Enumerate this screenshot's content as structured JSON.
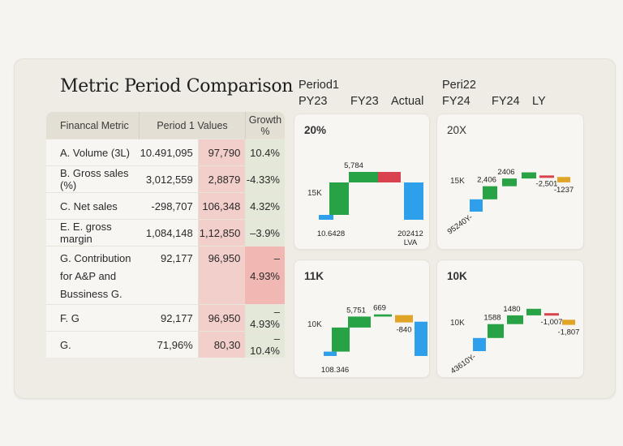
{
  "title": "Metric Period Comparison",
  "table": {
    "headers": [
      "Financal Metric",
      "Period 1 Values",
      "Growth %"
    ],
    "rows": [
      {
        "metric": "A. Volume (3L)",
        "p1": "10.491,095",
        "p2": "97,790",
        "growth": "10.4%",
        "growth_neg_highlight": false
      },
      {
        "metric": "B. Gross sales (%)",
        "p1": "3,012,559",
        "p2": "2,8879",
        "growth": "-4.33%",
        "growth_neg_highlight": false
      },
      {
        "metric": "C. Net sales",
        "p1": "-298,707",
        "p2": "106,348",
        "growth": "4.32%",
        "growth_neg_highlight": false
      },
      {
        "metric": "E. E. gross margin",
        "p1": "1,084,148",
        "p2": "1,12,850",
        "growth": "–3.9%",
        "growth_neg_highlight": false
      },
      {
        "metric": "G. Contribution for A&P and Bussiness G.",
        "p1": "92,177",
        "p2": "96,950",
        "growth": "–4.93%",
        "growth_neg_highlight": true
      },
      {
        "metric": "F. G",
        "p1": "92,177",
        "p2": "96,950",
        "growth": "–4.93%",
        "growth_neg_highlight": false
      },
      {
        "metric": "G.",
        "p1": "71,96%",
        "p2": "80,30",
        "growth": "–10.4%",
        "growth_neg_highlight": false
      }
    ]
  },
  "period_headers": {
    "period1": {
      "label": "Period1",
      "cols": [
        "PY23",
        "FY23",
        "Actual"
      ]
    },
    "period2": {
      "label": "Peri22",
      "cols": [
        "FY24",
        "FY24",
        "LY"
      ]
    }
  },
  "colors": {
    "start": "#2e9fea",
    "increase": "#27a244",
    "decrease": "#d9434f",
    "other": "#e0a526",
    "end": "#2e9fea"
  },
  "chart_data": [
    {
      "type": "bar",
      "subtype": "waterfall",
      "title": "20%",
      "axis_label": "15K",
      "ylim": [
        0,
        100
      ],
      "steps": [
        {
          "kind": "start",
          "label": "10.6428",
          "base": 0,
          "value": 6
        },
        {
          "kind": "increase",
          "label": "",
          "base": 6,
          "value": 40
        },
        {
          "kind": "increase",
          "label": "5,784",
          "base": 46,
          "value": 13
        },
        {
          "kind": "decrease",
          "label": "",
          "base": 59,
          "value": -13
        },
        {
          "kind": "end",
          "label": "202412\nLVA",
          "base": 0,
          "value": 46
        }
      ]
    },
    {
      "type": "bar",
      "subtype": "waterfall",
      "title": "20X",
      "axis_label": "15K",
      "ylim": [
        0,
        100
      ],
      "steps": [
        {
          "kind": "start",
          "label": "95240Y-",
          "base": 0,
          "value": 16
        },
        {
          "kind": "increase",
          "label": "2,406",
          "base": 16,
          "value": 17
        },
        {
          "kind": "increase",
          "label": "2406",
          "base": 33,
          "value": 10
        },
        {
          "kind": "increase",
          "label": "",
          "base": 43,
          "value": 8
        },
        {
          "kind": "decrease",
          "label": "-2,501",
          "base": 47,
          "value": -1
        },
        {
          "kind": "other",
          "label": "-1237",
          "base": 38,
          "value": 7
        }
      ]
    },
    {
      "type": "bar",
      "subtype": "waterfall",
      "title": "11K",
      "axis_label": "10K",
      "ylim": [
        0,
        100
      ],
      "steps": [
        {
          "kind": "start",
          "label": "108.346",
          "base": 0,
          "value": 6
        },
        {
          "kind": "increase",
          "label": "",
          "base": 6,
          "value": 33
        },
        {
          "kind": "increase",
          "label": "5,751",
          "base": 39,
          "value": 15
        },
        {
          "kind": "increase",
          "label": "669",
          "base": 54,
          "value": 3
        },
        {
          "kind": "other",
          "label": "-840",
          "base": 46,
          "value": 10
        },
        {
          "kind": "end",
          "label": "",
          "base": 0,
          "value": 47
        }
      ]
    },
    {
      "type": "bar",
      "subtype": "waterfall",
      "title": "10K",
      "axis_label": "10K",
      "ylim": [
        0,
        100
      ],
      "steps": [
        {
          "kind": "start",
          "label": "43610Y-",
          "base": 0,
          "value": 18
        },
        {
          "kind": "increase",
          "label": "1588",
          "base": 18,
          "value": 19
        },
        {
          "kind": "increase",
          "label": "1480",
          "base": 37,
          "value": 12
        },
        {
          "kind": "increase",
          "label": "",
          "base": 49,
          "value": 9
        },
        {
          "kind": "decrease",
          "label": "-1,007",
          "base": 52,
          "value": -2
        },
        {
          "kind": "other",
          "label": "-1,807",
          "base": 36,
          "value": 7
        }
      ]
    }
  ]
}
